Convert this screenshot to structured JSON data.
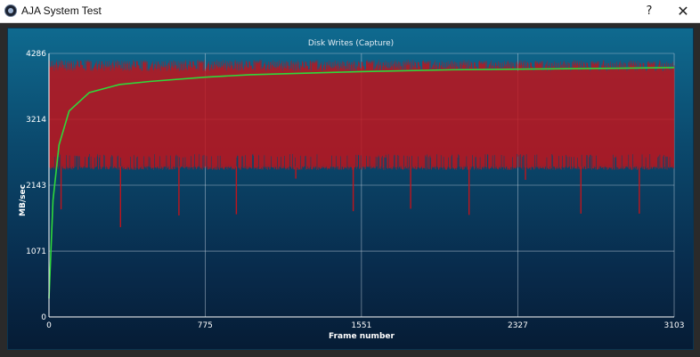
{
  "window": {
    "title": "AJA System Test",
    "help_label": "?",
    "close_label": "✕",
    "icon": "aja-app-icon"
  },
  "chart_data": {
    "type": "line",
    "title": "Disk Writes (Capture)",
    "xlabel": "Frame number",
    "ylabel": "MB/sec",
    "xlim": [
      0,
      3103
    ],
    "ylim": [
      0,
      4286
    ],
    "x_ticks": [
      "0",
      "775",
      "1551",
      "2327",
      "3103"
    ],
    "y_ticks": [
      "0",
      "1071",
      "2143",
      "3214",
      "4286"
    ],
    "grid": true,
    "series": [
      {
        "kind": "per-frame",
        "color": "#c0141c",
        "typical_high": 4180,
        "typical_low": 2450,
        "dips": [
          {
            "frame": 60,
            "value": 1750
          },
          {
            "frame": 355,
            "value": 1460
          },
          {
            "frame": 645,
            "value": 1650
          },
          {
            "frame": 930,
            "value": 1670
          },
          {
            "frame": 1225,
            "value": 2250
          },
          {
            "frame": 1510,
            "value": 1720
          },
          {
            "frame": 1795,
            "value": 1760
          },
          {
            "frame": 2085,
            "value": 1660
          },
          {
            "frame": 2365,
            "value": 2230
          },
          {
            "frame": 2640,
            "value": 1680
          },
          {
            "frame": 2930,
            "value": 1680
          }
        ]
      },
      {
        "kind": "average",
        "color": "#2fd83a",
        "points": [
          [
            0,
            300
          ],
          [
            20,
            1900
          ],
          [
            50,
            2800
          ],
          [
            100,
            3350
          ],
          [
            200,
            3650
          ],
          [
            350,
            3780
          ],
          [
            500,
            3830
          ],
          [
            775,
            3900
          ],
          [
            1000,
            3940
          ],
          [
            1551,
            3990
          ],
          [
            2000,
            4020
          ],
          [
            2327,
            4030
          ],
          [
            2800,
            4045
          ],
          [
            3103,
            4055
          ]
        ]
      }
    ]
  }
}
